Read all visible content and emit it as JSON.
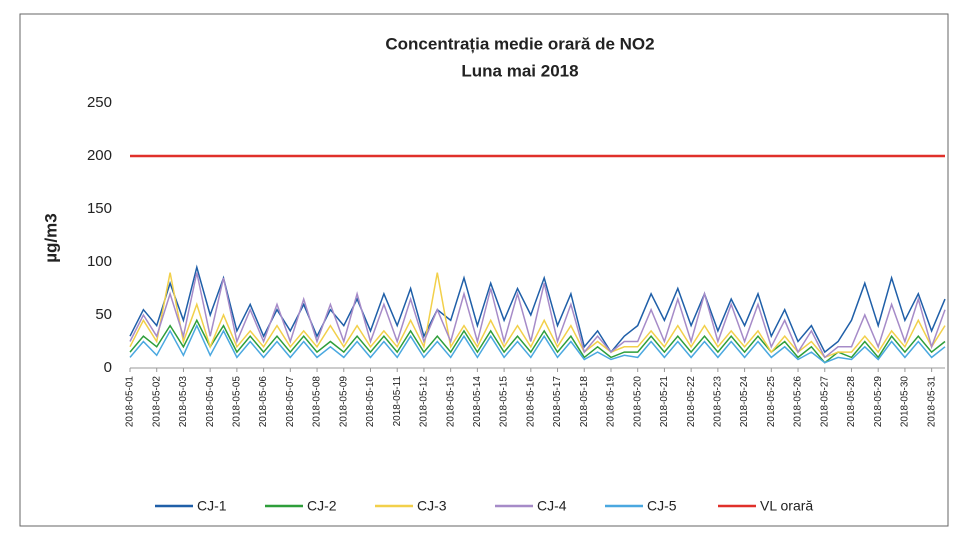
{
  "chart_data": {
    "type": "line",
    "title": "Concentrația medie orară de NO2",
    "subtitle": "Luna mai 2018",
    "y_label": "µg/m3",
    "categories": [
      "2018-05-01",
      null,
      "2018-05-02",
      null,
      "2018-05-03",
      null,
      "2018-05-04",
      null,
      "2018-05-05",
      null,
      "2018-05-06",
      null,
      "2018-05-07",
      null,
      "2018-05-08",
      null,
      "2018-05-09",
      null,
      "2018-05-10",
      null,
      "2018-05-11",
      null,
      "2018-05-12",
      null,
      "2018-05-13",
      null,
      "2018-05-14",
      null,
      "2018-05-15",
      null,
      "2018-05-16",
      null,
      "2018-05-17",
      null,
      "2018-05-18",
      null,
      "2018-05-19",
      null,
      "2018-05-20",
      null,
      "2018-05-21",
      null,
      "2018-05-22",
      null,
      "2018-05-23",
      null,
      "2018-05-24",
      null,
      "2018-05-25",
      null,
      "2018-05-26",
      null,
      "2018-05-27",
      null,
      "2018-05-28",
      null,
      "2018-05-29",
      null,
      "2018-05-30",
      null,
      "2018-05-31",
      null
    ],
    "series": [
      {
        "name": "CJ-1",
        "color": "#1f5fa8",
        "values": [
          30,
          55,
          40,
          80,
          45,
          95,
          50,
          85,
          35,
          60,
          30,
          55,
          35,
          60,
          30,
          55,
          40,
          65,
          35,
          70,
          40,
          75,
          30,
          55,
          45,
          85,
          40,
          80,
          45,
          75,
          50,
          85,
          40,
          70,
          20,
          35,
          15,
          30,
          40,
          70,
          45,
          75,
          40,
          70,
          35,
          65,
          40,
          70,
          30,
          55,
          25,
          40,
          15,
          25,
          45,
          80,
          40,
          85,
          45,
          70,
          35,
          65
        ]
      },
      {
        "name": "CJ-2",
        "color": "#2e9e3a",
        "values": [
          15,
          30,
          20,
          40,
          20,
          45,
          20,
          40,
          15,
          30,
          15,
          30,
          15,
          30,
          15,
          25,
          15,
          30,
          15,
          30,
          15,
          35,
          15,
          30,
          15,
          35,
          15,
          35,
          15,
          30,
          15,
          35,
          15,
          30,
          10,
          20,
          10,
          15,
          15,
          30,
          15,
          30,
          15,
          30,
          15,
          30,
          15,
          30,
          15,
          25,
          10,
          20,
          5,
          15,
          10,
          25,
          10,
          30,
          15,
          30,
          15,
          25
        ]
      },
      {
        "name": "CJ-3",
        "color": "#f2d04a",
        "values": [
          20,
          45,
          25,
          90,
          25,
          60,
          20,
          50,
          20,
          35,
          20,
          40,
          20,
          35,
          20,
          40,
          20,
          40,
          20,
          35,
          20,
          45,
          20,
          90,
          20,
          40,
          20,
          45,
          20,
          40,
          20,
          45,
          20,
          40,
          15,
          25,
          15,
          20,
          20,
          35,
          20,
          40,
          20,
          40,
          20,
          35,
          20,
          35,
          15,
          30,
          15,
          25,
          10,
          15,
          15,
          30,
          15,
          35,
          20,
          45,
          20,
          40
        ]
      },
      {
        "name": "CJ-4",
        "color": "#a68bc8",
        "values": [
          25,
          50,
          30,
          70,
          30,
          90,
          30,
          85,
          25,
          55,
          25,
          60,
          25,
          65,
          25,
          60,
          25,
          70,
          25,
          60,
          25,
          65,
          25,
          55,
          25,
          70,
          25,
          75,
          25,
          70,
          25,
          80,
          25,
          60,
          15,
          30,
          15,
          25,
          25,
          55,
          25,
          65,
          25,
          70,
          25,
          60,
          25,
          60,
          20,
          45,
          15,
          35,
          10,
          20,
          20,
          50,
          20,
          60,
          25,
          65,
          20,
          55
        ]
      },
      {
        "name": "CJ-5",
        "color": "#4aa8e0",
        "values": [
          10,
          25,
          12,
          35,
          12,
          40,
          12,
          35,
          10,
          25,
          10,
          25,
          10,
          25,
          10,
          20,
          10,
          25,
          10,
          25,
          10,
          30,
          10,
          25,
          10,
          30,
          10,
          30,
          10,
          25,
          10,
          30,
          10,
          25,
          8,
          15,
          8,
          12,
          10,
          25,
          10,
          25,
          10,
          25,
          10,
          25,
          10,
          25,
          10,
          20,
          8,
          15,
          5,
          10,
          8,
          20,
          8,
          25,
          10,
          25,
          10,
          20
        ]
      },
      {
        "name": "VL orară",
        "color": "#e0302a",
        "values": [
          200,
          200,
          200,
          200,
          200,
          200,
          200,
          200,
          200,
          200,
          200,
          200,
          200,
          200,
          200,
          200,
          200,
          200,
          200,
          200,
          200,
          200,
          200,
          200,
          200,
          200,
          200,
          200,
          200,
          200,
          200,
          200,
          200,
          200,
          200,
          200,
          200,
          200,
          200,
          200,
          200,
          200,
          200,
          200,
          200,
          200,
          200,
          200,
          200,
          200,
          200,
          200,
          200,
          200,
          200,
          200,
          200,
          200,
          200,
          200,
          200,
          200
        ]
      }
    ],
    "ylim": [
      0,
      250
    ],
    "yticks": [
      0,
      50,
      100,
      150,
      200,
      250
    ],
    "grid": false
  }
}
